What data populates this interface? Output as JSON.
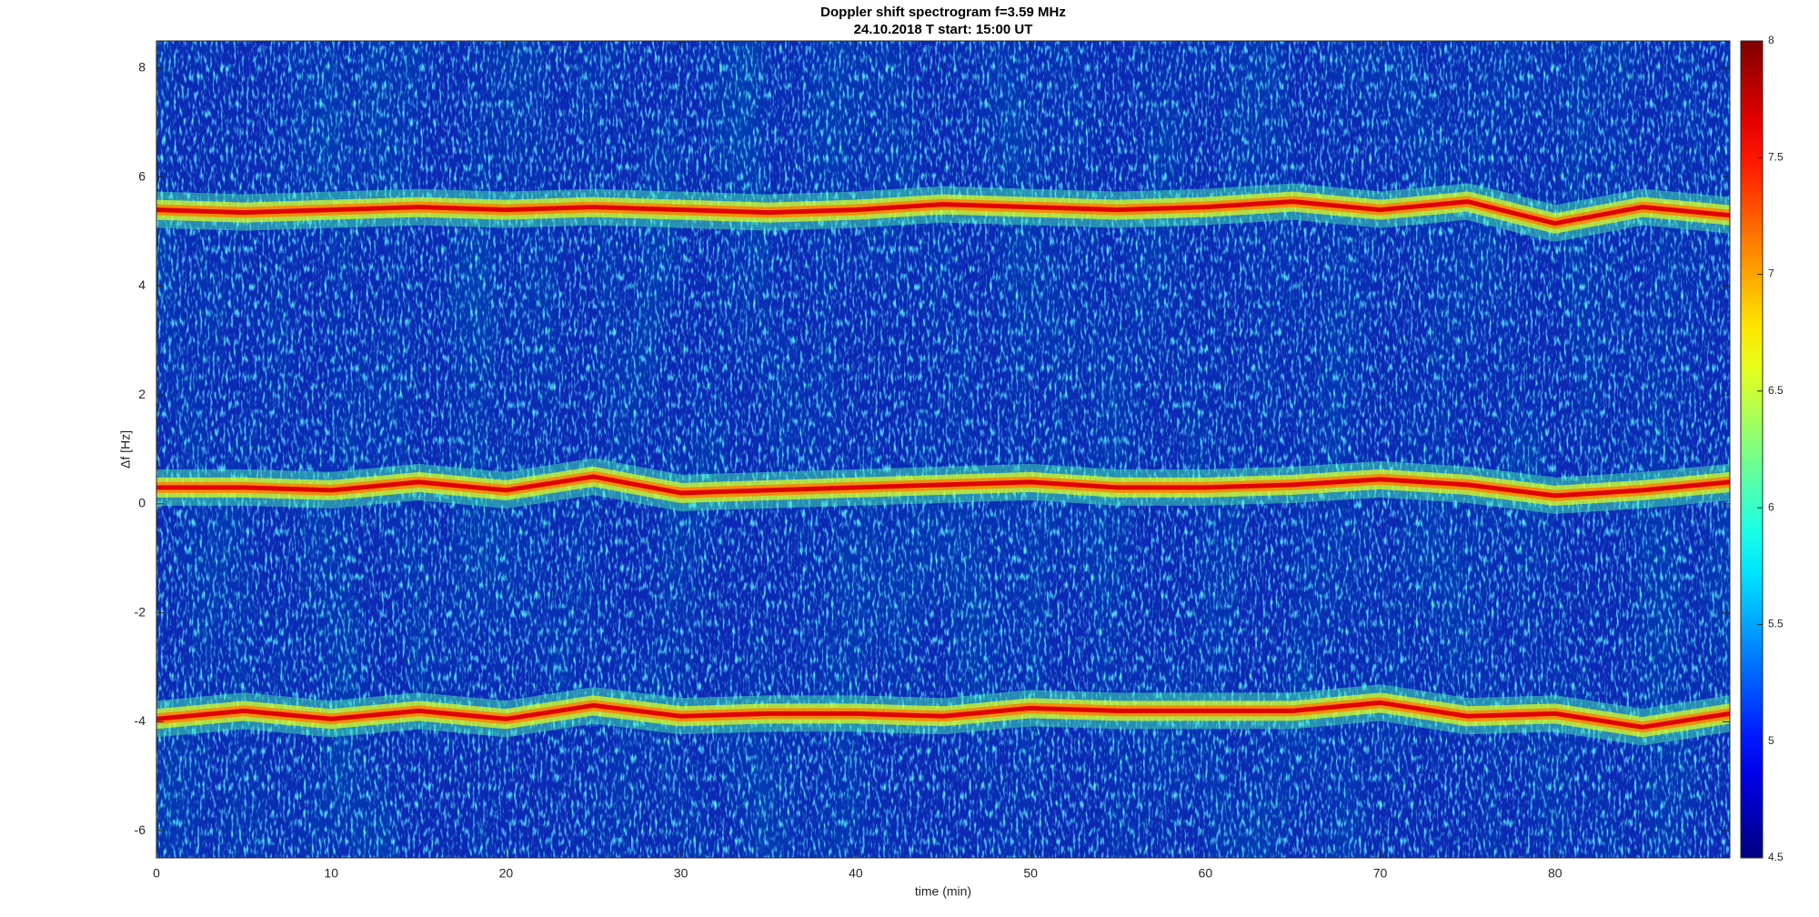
{
  "chart_data": {
    "type": "spectrogram",
    "title": "Doppler shift spectrogram f=3.59 MHz",
    "subtitle": "24.10.2018   T start: 15:00 UT",
    "xlabel": "time (min)",
    "ylabel": "Δf [Hz]",
    "xlim": [
      0,
      90
    ],
    "ylim": [
      -6.5,
      8.5
    ],
    "xticks": [
      0,
      10,
      20,
      30,
      40,
      50,
      60,
      70,
      80
    ],
    "yticks": [
      -6,
      -4,
      -2,
      0,
      2,
      4,
      6,
      8
    ],
    "x": [
      0,
      5,
      10,
      15,
      20,
      25,
      30,
      35,
      40,
      45,
      50,
      55,
      60,
      65,
      70,
      75,
      80,
      85,
      90
    ],
    "series": [
      {
        "color": "#e00000",
        "values": [
          5.4,
          5.35,
          5.4,
          5.45,
          5.4,
          5.45,
          5.4,
          5.35,
          5.4,
          5.5,
          5.45,
          5.4,
          5.45,
          5.55,
          5.4,
          5.55,
          5.15,
          5.45,
          5.3
        ]
      },
      {
        "color": "#e00000",
        "values": [
          0.3,
          0.3,
          0.25,
          0.4,
          0.25,
          0.5,
          0.2,
          0.25,
          0.3,
          0.35,
          0.4,
          0.3,
          0.3,
          0.35,
          0.45,
          0.35,
          0.15,
          0.25,
          0.4
        ]
      },
      {
        "color": "#e00000",
        "values": [
          -3.95,
          -3.8,
          -3.95,
          -3.8,
          -3.95,
          -3.7,
          -3.9,
          -3.85,
          -3.85,
          -3.9,
          -3.75,
          -3.8,
          -3.8,
          -3.8,
          -3.65,
          -3.9,
          -3.85,
          -4.1,
          -3.85
        ]
      }
    ],
    "colormap": "jet",
    "colorbar": {
      "lim": [
        4.5,
        8
      ],
      "ticks": [
        4.5,
        5,
        5.5,
        6,
        6.5,
        7,
        7.5,
        8
      ]
    }
  }
}
